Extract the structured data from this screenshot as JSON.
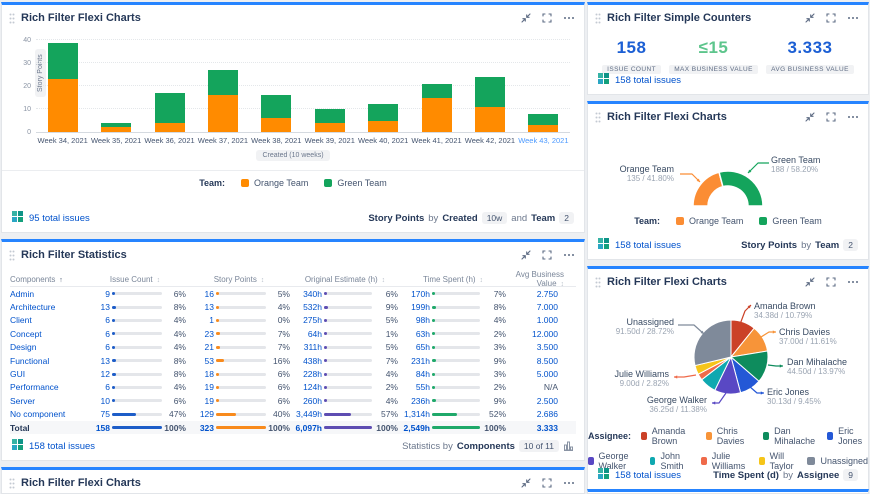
{
  "colors": {
    "accent_blue": "#2684FF",
    "link_blue": "#0052CC",
    "orange_team": "#FF8B00",
    "green_team": "#14A45C",
    "issue_count_bar": "#1D5DC8",
    "story_points_bar": "#F88A1C",
    "orig_estimate_bar": "#5E4DB2",
    "time_spent_bar": "#1FA96A",
    "counter_blue": "#1C5FD4",
    "counter_green": "#5DC58C"
  },
  "bar_panel": {
    "title": "Rich Filter Flexi Charts",
    "legend_title": "Team:",
    "footer_link": "95 total issues",
    "footer": {
      "metric": "Story Points",
      "by": "by",
      "dim1": "Created",
      "badge1": "10w",
      "and": "and",
      "dim2": "Team",
      "badge2": "2"
    }
  },
  "counters_panel": {
    "title": "Rich Filter Simple Counters",
    "counters": [
      {
        "value": "158",
        "label": "ISSUE COUNT",
        "color": "#1C5FD4"
      },
      {
        "value": "≤15",
        "label": "MAX BUSINESS VALUE",
        "color": "#5DC58C"
      },
      {
        "value": "3.333",
        "label": "AVG BUSINESS VALUE",
        "color": "#1C5FD4"
      }
    ],
    "footer_link": "158 total issues"
  },
  "donut_panel": {
    "title": "Rich Filter Flexi Charts",
    "legend_title": "Team:",
    "footer_link": "158 total issues",
    "footer": {
      "metric": "Story Points",
      "by": "by",
      "dim": "Team",
      "badge": "2"
    }
  },
  "stats_panel": {
    "title": "Rich Filter Statistics",
    "footer_link": "158 total issues",
    "footer": {
      "prefix": "Statistics by",
      "dim": "Components",
      "badge": "10 of 11"
    }
  },
  "pie_panel": {
    "title": "Rich Filter Flexi Charts",
    "legend_title": "Assignee:",
    "footer_link": "158 total issues",
    "footer": {
      "metric": "Time Spent (d)",
      "by": "by",
      "dim": "Assignee",
      "badge": "9"
    }
  },
  "cut_panel": {
    "title": "Rich Filter Flexi Charts"
  },
  "chart_data": [
    {
      "type": "bar",
      "stacked": true,
      "title": "Story Points by Created and Team",
      "xlabel": "Created (10 weeks)",
      "ylabel": "Story Points",
      "ylim": [
        0,
        40
      ],
      "yticks": [
        0,
        10,
        20,
        30,
        40
      ],
      "grid": "horizontal-dotted",
      "legend_position": "bottom",
      "highlight_last": true,
      "categories": [
        "Week 34, 2021",
        "Week 35, 2021",
        "Week 36, 2021",
        "Week 37, 2021",
        "Week 38, 2021",
        "Week 39, 2021",
        "Week 40, 2021",
        "Week 41, 2021",
        "Week 42, 2021",
        "Week 43, 2021"
      ],
      "series": [
        {
          "name": "Orange Team",
          "color": "#FF8B00",
          "values": [
            23,
            2,
            4,
            16,
            6,
            4,
            5,
            15,
            11,
            3
          ]
        },
        {
          "name": "Green Team",
          "color": "#14A45C",
          "values": [
            15.5,
            2,
            13,
            11,
            10,
            6,
            7,
            6,
            13,
            5
          ]
        }
      ]
    },
    {
      "type": "pie",
      "variant": "semi-donut",
      "title": "Story Points by Team",
      "legend_position": "bottom",
      "slices": [
        {
          "name": "Orange Team",
          "color": "#FB8D34",
          "value": 135,
          "pct": 41.8,
          "display": "135 / 41.80%"
        },
        {
          "name": "Green Team",
          "color": "#14A45C",
          "value": 188,
          "pct": 58.2,
          "display": "188 / 58.20%"
        }
      ]
    },
    {
      "type": "pie",
      "title": "Time Spent (d) by Assignee",
      "legend_position": "bottom",
      "slices": [
        {
          "name": "Amanda Brown",
          "color": "#CB4127",
          "value": 34.38,
          "pct": 10.79,
          "display": "34.38d / 10.79%"
        },
        {
          "name": "Chris Davies",
          "color": "#F79439",
          "value": 37.0,
          "pct": 11.61,
          "display": "37.00d / 11.61%"
        },
        {
          "name": "Dan Mihalache",
          "color": "#0E8C5D",
          "value": 44.5,
          "pct": 13.97,
          "display": "44.50d / 13.97%"
        },
        {
          "name": "Eric Jones",
          "color": "#2458D6",
          "value": 30.13,
          "pct": 9.45,
          "display": "30.13d / 9.45%"
        },
        {
          "name": "George Walker",
          "color": "#5948C4",
          "value": 36.25,
          "pct": 11.38,
          "display": "36.25d / 11.38%"
        },
        {
          "name": "John Smith",
          "color": "#0FA8B0",
          "value": 23.25,
          "pct": 7.3,
          "estimated": true
        },
        {
          "name": "Julie Williams",
          "color": "#EF6A4A",
          "value": 9.0,
          "pct": 2.82,
          "display": "9.00d / 2.82%"
        },
        {
          "name": "Will Taylor",
          "color": "#F6C519",
          "value": 12.63,
          "pct": 3.96,
          "estimated": true
        },
        {
          "name": "Unassigned",
          "color": "#7F8A9A",
          "value": 91.5,
          "pct": 28.72,
          "display": "91.50d / 28.72%"
        }
      ]
    },
    {
      "type": "table",
      "columns": [
        "Components",
        "Issue Count",
        "Story Points",
        "Original Estimate (h)",
        "Time Spent (h)",
        "Avg Business Value"
      ],
      "rows": [
        [
          "Admin",
          "9",
          "6%",
          "16",
          "5%",
          "340h",
          "6%",
          "170h",
          "7%",
          "2.750"
        ],
        [
          "Architecture",
          "13",
          "8%",
          "13",
          "4%",
          "532h",
          "9%",
          "199h",
          "8%",
          "7.000"
        ],
        [
          "Client",
          "6",
          "4%",
          "1",
          "0%",
          "275h",
          "5%",
          "98h",
          "4%",
          "1.000"
        ],
        [
          "Concept",
          "6",
          "4%",
          "23",
          "7%",
          "64h",
          "1%",
          "63h",
          "2%",
          "12.000"
        ],
        [
          "Design",
          "6",
          "4%",
          "21",
          "7%",
          "311h",
          "5%",
          "65h",
          "3%",
          "3.500"
        ],
        [
          "Functional",
          "13",
          "8%",
          "53",
          "16%",
          "438h",
          "7%",
          "231h",
          "9%",
          "8.500"
        ],
        [
          "GUI",
          "12",
          "8%",
          "18",
          "6%",
          "228h",
          "4%",
          "84h",
          "3%",
          "5.000"
        ],
        [
          "Performance",
          "6",
          "4%",
          "19",
          "6%",
          "124h",
          "2%",
          "55h",
          "2%",
          "N/A"
        ],
        [
          "Server",
          "10",
          "6%",
          "19",
          "6%",
          "260h",
          "4%",
          "236h",
          "9%",
          "2.500"
        ],
        [
          "No component",
          "75",
          "47%",
          "129",
          "40%",
          "3,449h",
          "57%",
          "1,314h",
          "52%",
          "2.686"
        ]
      ],
      "total": [
        "Total",
        "158",
        "100%",
        "323",
        "100%",
        "6,097h",
        "100%",
        "2,549h",
        "100%",
        "3.333"
      ]
    }
  ]
}
